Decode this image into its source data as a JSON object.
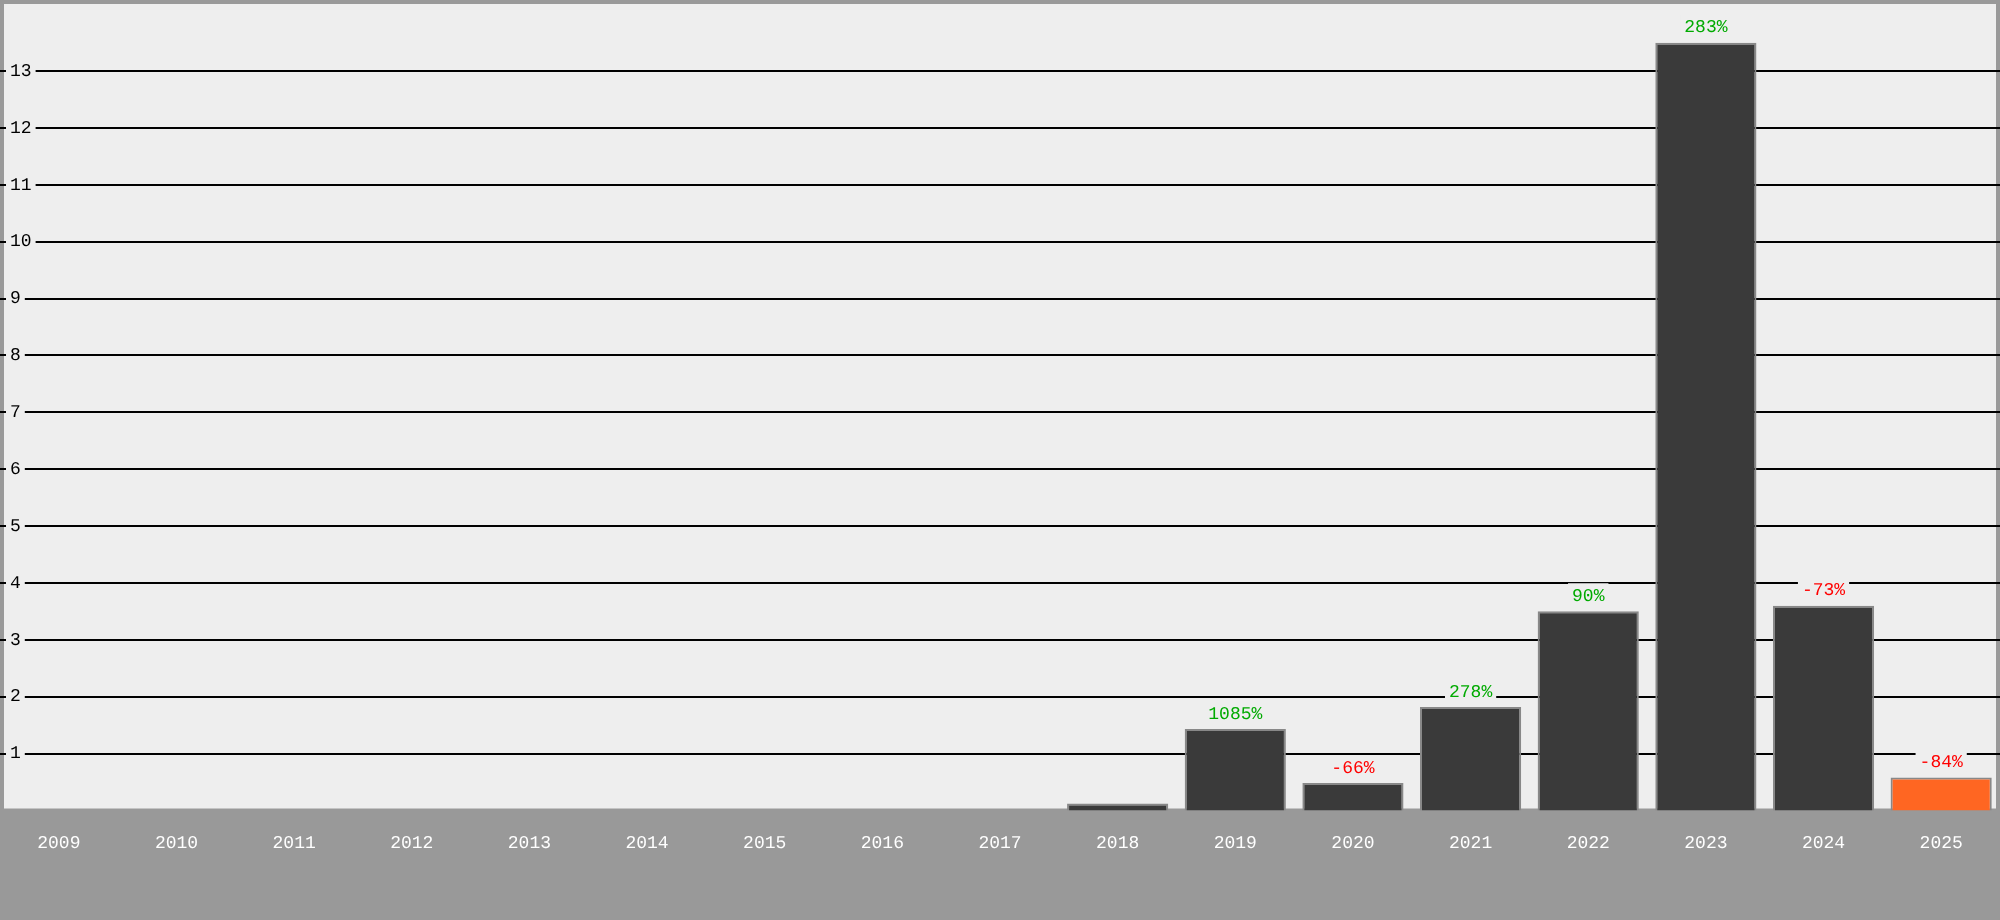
{
  "chart_data": {
    "type": "bar",
    "categories": [
      "2009",
      "2010",
      "2011",
      "2012",
      "2013",
      "2014",
      "2015",
      "2016",
      "2017",
      "2018",
      "2019",
      "2020",
      "2021",
      "2022",
      "2023",
      "2024",
      "2025"
    ],
    "values": [
      0,
      0,
      0,
      0,
      0,
      0,
      0,
      0,
      0,
      0.12,
      1.43,
      0.48,
      1.82,
      3.5,
      13.5,
      3.6,
      0.58
    ],
    "colors": [
      "#3a3a3a",
      "#3a3a3a",
      "#3a3a3a",
      "#3a3a3a",
      "#3a3a3a",
      "#3a3a3a",
      "#3a3a3a",
      "#3a3a3a",
      "#3a3a3a",
      "#3a3a3a",
      "#3a3a3a",
      "#3a3a3a",
      "#3a3a3a",
      "#3a3a3a",
      "#3a3a3a",
      "#3a3a3a",
      "#ff6622"
    ],
    "annotations": [
      {
        "text": "1085%",
        "x": "2019",
        "y": 1.43
      },
      {
        "text": "-66%",
        "x": "2020",
        "y": 0.48
      },
      {
        "text": "278%",
        "x": "2021",
        "y": 1.82
      },
      {
        "text": "90%",
        "x": "2022",
        "y": 3.5
      },
      {
        "text": "283%",
        "x": "2023",
        "y": 13.5
      },
      {
        "text": "-73%",
        "x": "2024",
        "y": 3.6
      },
      {
        "text": "-84%",
        "x": "2025",
        "y": 0.58
      }
    ],
    "ylim": [
      0,
      14.25
    ],
    "yticks": [
      1,
      2,
      3,
      4,
      5,
      6,
      7,
      8,
      9,
      10,
      11,
      12,
      13
    ],
    "grid": "y",
    "legend": false
  }
}
